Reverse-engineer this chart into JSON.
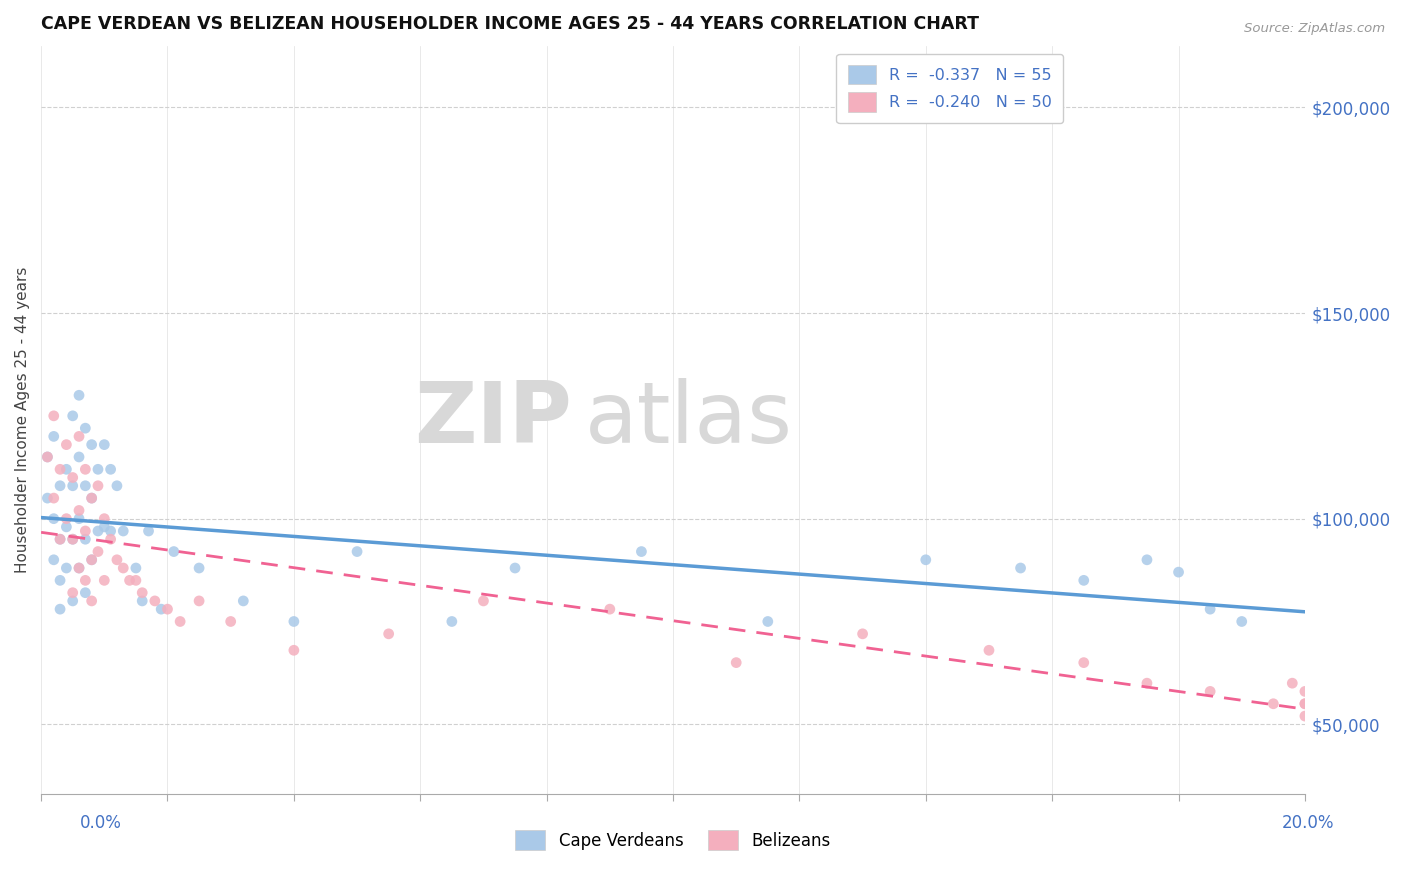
{
  "title": "CAPE VERDEAN VS BELIZEAN HOUSEHOLDER INCOME AGES 25 - 44 YEARS CORRELATION CHART",
  "source": "Source: ZipAtlas.com",
  "ylabel": "Householder Income Ages 25 - 44 years",
  "legend_r1": "-0.337",
  "legend_n1": "55",
  "legend_r2": "-0.240",
  "legend_n2": "50",
  "right_ytick_labels": [
    "$200,000",
    "$150,000",
    "$100,000",
    "$50,000"
  ],
  "right_ytick_vals": [
    200000,
    150000,
    100000,
    50000
  ],
  "xlim": [
    0.0,
    0.2
  ],
  "ylim": [
    33000,
    215000
  ],
  "color_cv": "#aac9e8",
  "color_bz": "#f4afbe",
  "color_cv_line": "#5b9bd5",
  "color_bz_line": "#f06292",
  "watermark_top": "ZIP",
  "watermark_bot": "atlas",
  "cv_x": [
    0.001,
    0.001,
    0.002,
    0.002,
    0.002,
    0.003,
    0.003,
    0.003,
    0.003,
    0.004,
    0.004,
    0.004,
    0.005,
    0.005,
    0.005,
    0.005,
    0.006,
    0.006,
    0.006,
    0.006,
    0.007,
    0.007,
    0.007,
    0.007,
    0.008,
    0.008,
    0.008,
    0.009,
    0.009,
    0.01,
    0.01,
    0.011,
    0.011,
    0.012,
    0.013,
    0.015,
    0.016,
    0.017,
    0.019,
    0.021,
    0.025,
    0.032,
    0.04,
    0.05,
    0.065,
    0.075,
    0.095,
    0.115,
    0.14,
    0.155,
    0.165,
    0.175,
    0.18,
    0.185,
    0.19
  ],
  "cv_y": [
    105000,
    115000,
    120000,
    100000,
    90000,
    108000,
    95000,
    85000,
    78000,
    112000,
    98000,
    88000,
    125000,
    108000,
    95000,
    80000,
    130000,
    115000,
    100000,
    88000,
    122000,
    108000,
    95000,
    82000,
    118000,
    105000,
    90000,
    112000,
    97000,
    118000,
    98000,
    112000,
    97000,
    108000,
    97000,
    88000,
    80000,
    97000,
    78000,
    92000,
    88000,
    80000,
    75000,
    92000,
    75000,
    88000,
    92000,
    75000,
    90000,
    88000,
    85000,
    90000,
    87000,
    78000,
    75000
  ],
  "bz_x": [
    0.001,
    0.002,
    0.002,
    0.003,
    0.003,
    0.004,
    0.004,
    0.005,
    0.005,
    0.005,
    0.006,
    0.006,
    0.006,
    0.007,
    0.007,
    0.007,
    0.008,
    0.008,
    0.008,
    0.009,
    0.009,
    0.01,
    0.01,
    0.011,
    0.012,
    0.013,
    0.014,
    0.015,
    0.016,
    0.018,
    0.02,
    0.022,
    0.025,
    0.03,
    0.04,
    0.055,
    0.07,
    0.09,
    0.11,
    0.13,
    0.15,
    0.165,
    0.175,
    0.185,
    0.195,
    0.198,
    0.2,
    0.2,
    0.2,
    0.2
  ],
  "bz_y": [
    115000,
    125000,
    105000,
    112000,
    95000,
    118000,
    100000,
    110000,
    95000,
    82000,
    120000,
    102000,
    88000,
    112000,
    97000,
    85000,
    105000,
    90000,
    80000,
    108000,
    92000,
    100000,
    85000,
    95000,
    90000,
    88000,
    85000,
    85000,
    82000,
    80000,
    78000,
    75000,
    80000,
    75000,
    68000,
    72000,
    80000,
    78000,
    65000,
    72000,
    68000,
    65000,
    60000,
    58000,
    55000,
    60000,
    55000,
    58000,
    52000,
    55000
  ]
}
